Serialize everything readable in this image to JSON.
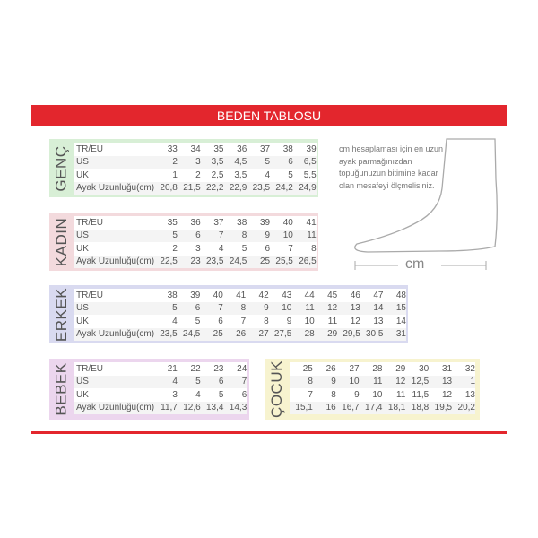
{
  "title": "BEDEN TABLOSU",
  "note": "cm hesaplaması için en uzun ayak parmağınızdan topuğunuzun bitimine kadar olan mesafeyi ölçmelisiniz.",
  "cm_label": "cm",
  "colors": {
    "accent": "#e3262d",
    "genc": "#d8efd6",
    "kadin": "#f3dadd",
    "erkek": "#d9daf0",
    "bebek": "#ecd6ee",
    "cocuk": "#f7f3cf"
  },
  "tables": [
    {
      "id": "genc",
      "name": "GENÇ",
      "rows": [
        {
          "label": "TR/EU",
          "values": [
            "33",
            "34",
            "35",
            "36",
            "37",
            "38",
            "39"
          ]
        },
        {
          "label": "US",
          "values": [
            "2",
            "3",
            "3,5",
            "4,5",
            "5",
            "6",
            "6,5"
          ]
        },
        {
          "label": "UK",
          "values": [
            "1",
            "2",
            "2,5",
            "3,5",
            "4",
            "5",
            "5,5"
          ]
        },
        {
          "label": "Ayak Uzunluğu(cm)",
          "values": [
            "20,8",
            "21,5",
            "22,2",
            "22,9",
            "23,5",
            "24,2",
            "24,9"
          ]
        }
      ]
    },
    {
      "id": "kadin",
      "name": "KADIN",
      "rows": [
        {
          "label": "TR/EU",
          "values": [
            "35",
            "36",
            "37",
            "38",
            "39",
            "40",
            "41"
          ]
        },
        {
          "label": "US",
          "values": [
            "5",
            "6",
            "7",
            "8",
            "9",
            "10",
            "11"
          ]
        },
        {
          "label": "UK",
          "values": [
            "2",
            "3",
            "4",
            "5",
            "6",
            "7",
            "8"
          ]
        },
        {
          "label": "Ayak Uzunluğu(cm)",
          "values": [
            "22,5",
            "23",
            "23,5",
            "24,5",
            "25",
            "25,5",
            "26,5"
          ]
        }
      ]
    },
    {
      "id": "erkek",
      "name": "ERKEK",
      "rows": [
        {
          "label": "TR/EU",
          "values": [
            "38",
            "39",
            "40",
            "41",
            "42",
            "43",
            "44",
            "45",
            "46",
            "47",
            "48"
          ]
        },
        {
          "label": "US",
          "values": [
            "5",
            "6",
            "7",
            "8",
            "9",
            "10",
            "11",
            "12",
            "13",
            "14",
            "15"
          ]
        },
        {
          "label": "UK",
          "values": [
            "4",
            "5",
            "6",
            "7",
            "8",
            "9",
            "10",
            "11",
            "12",
            "13",
            "14"
          ]
        },
        {
          "label": "Ayak Uzunluğu(cm)",
          "values": [
            "23,5",
            "24,5",
            "25",
            "26",
            "27",
            "27,5",
            "28",
            "29",
            "29,5",
            "30,5",
            "31"
          ]
        }
      ]
    },
    {
      "id": "bebek",
      "name": "BEBEK",
      "rows": [
        {
          "label": "TR/EU",
          "values": [
            "21",
            "22",
            "23",
            "24"
          ]
        },
        {
          "label": "US",
          "values": [
            "4",
            "5",
            "6",
            "7"
          ]
        },
        {
          "label": "UK",
          "values": [
            "3",
            "4",
            "5",
            "6"
          ]
        },
        {
          "label": "Ayak Uzunluğu(cm)",
          "values": [
            "11,7",
            "12,6",
            "13,4",
            "14,3"
          ]
        }
      ]
    },
    {
      "id": "cocuk",
      "name": "ÇOCUK",
      "rows": [
        {
          "values": [
            "25",
            "26",
            "27",
            "28",
            "29",
            "30",
            "31",
            "32"
          ]
        },
        {
          "values": [
            "8",
            "9",
            "10",
            "11",
            "12",
            "12,5",
            "13",
            "1"
          ]
        },
        {
          "values": [
            "7",
            "8",
            "9",
            "10",
            "11",
            "11,5",
            "12",
            "13"
          ]
        },
        {
          "values": [
            "15,1",
            "16",
            "16,7",
            "17,4",
            "18,1",
            "18,8",
            "19,5",
            "20,2"
          ]
        }
      ]
    }
  ]
}
